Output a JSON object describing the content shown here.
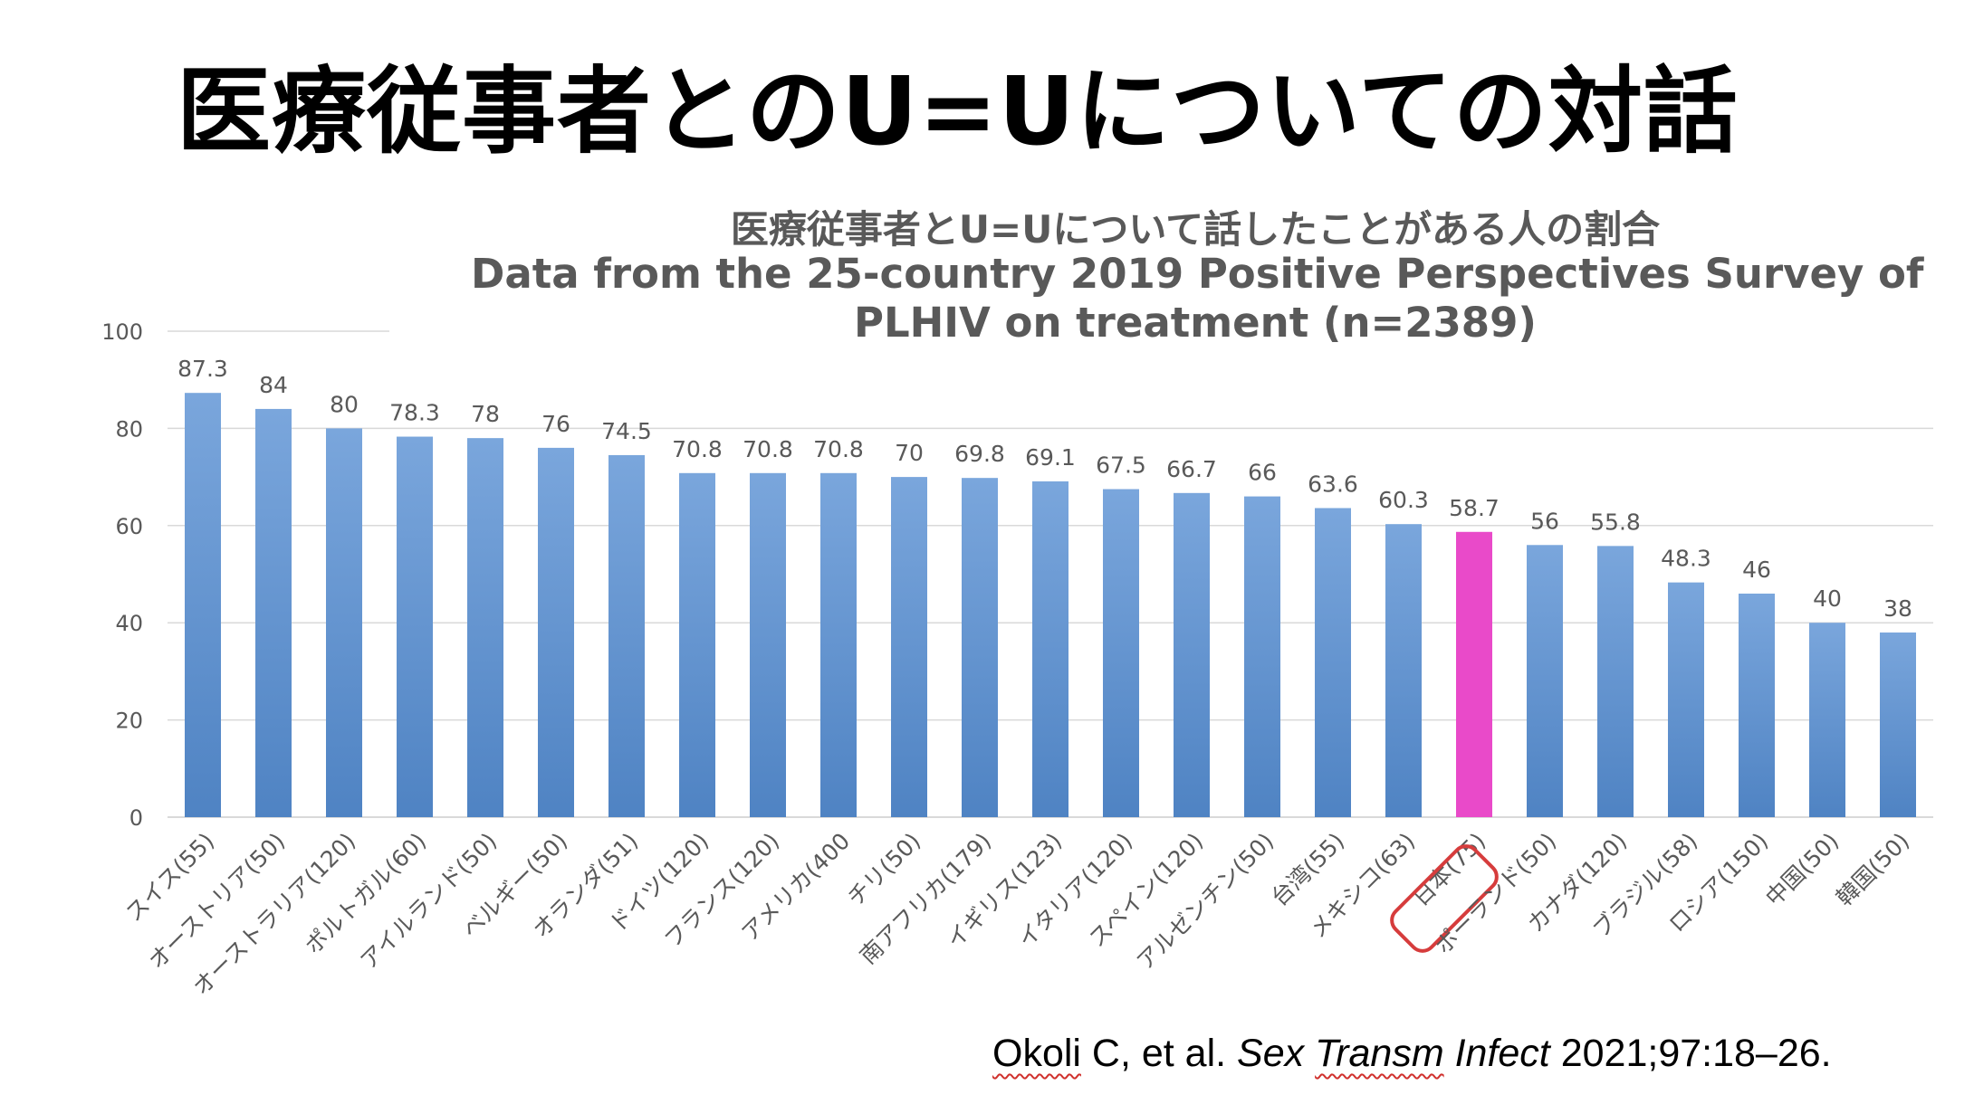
{
  "slide": {
    "title": "医療従事者とのU=Uについての対話"
  },
  "chart_data": {
    "type": "bar",
    "title_lines": [
      "医療従事者とU=Uについて話したことがある人の割合",
      "Data from the 25-country 2019 Positive Perspectives Survey of",
      "PLHIV on treatment (n=2389)"
    ],
    "categories": [
      "スイス(55)",
      "オーストリア(50)",
      "オーストラリア(120)",
      "ポルトガル(60)",
      "アイルランド(50)",
      "ベルギー(50)",
      "オランダ(51)",
      "ドイツ(120)",
      "フランス(120)",
      "アメリカ(400",
      "チリ(50)",
      "南アフリカ(179)",
      "イギリス(123)",
      "イタリア(120)",
      "スペイン(120)",
      "アルゼンチン(50)",
      "台湾(55)",
      "メキシコ(63)",
      "日本(75)",
      "ポーランド(50)",
      "カナダ(120)",
      "ブラジル(58)",
      "ロシア(150)",
      "中国(50)",
      "韓国(50)"
    ],
    "values": [
      87.3,
      84,
      80,
      78.3,
      78,
      76,
      74.5,
      70.8,
      70.8,
      70.8,
      70,
      69.8,
      69.1,
      67.5,
      66.7,
      66,
      63.6,
      60.3,
      58.7,
      56,
      55.8,
      48.3,
      46,
      40,
      38
    ],
    "value_labels": [
      "87.3",
      "84",
      "80",
      "78.3",
      "78",
      "76",
      "74.5",
      "70.8",
      "70.8",
      "70.8",
      "70",
      "69.8",
      "69.1",
      "67.5",
      "66.7",
      "66",
      "63.6",
      "60.3",
      "58.7",
      "56",
      "55.8",
      "48.3",
      "46",
      "40",
      "38"
    ],
    "y_ticks": [
      "0",
      "20",
      "40",
      "60",
      "80",
      "100"
    ],
    "ylim": [
      0,
      100
    ],
    "grid": true,
    "highlight_index": 18,
    "colors": {
      "bar_top": "#7aa6dc",
      "bar_bottom": "#4f83c3",
      "highlight": "#e94ac9",
      "highlight_box": "#d63c3c",
      "grid": "#d9d9d9",
      "text": "#595959"
    }
  },
  "citation": {
    "author": "Okoli",
    "author_rest": " C, et al. ",
    "journal_1": "Sex ",
    "journal_2": "Transm",
    "journal_3": " Infect",
    "details": " 2021;97:18–26."
  }
}
